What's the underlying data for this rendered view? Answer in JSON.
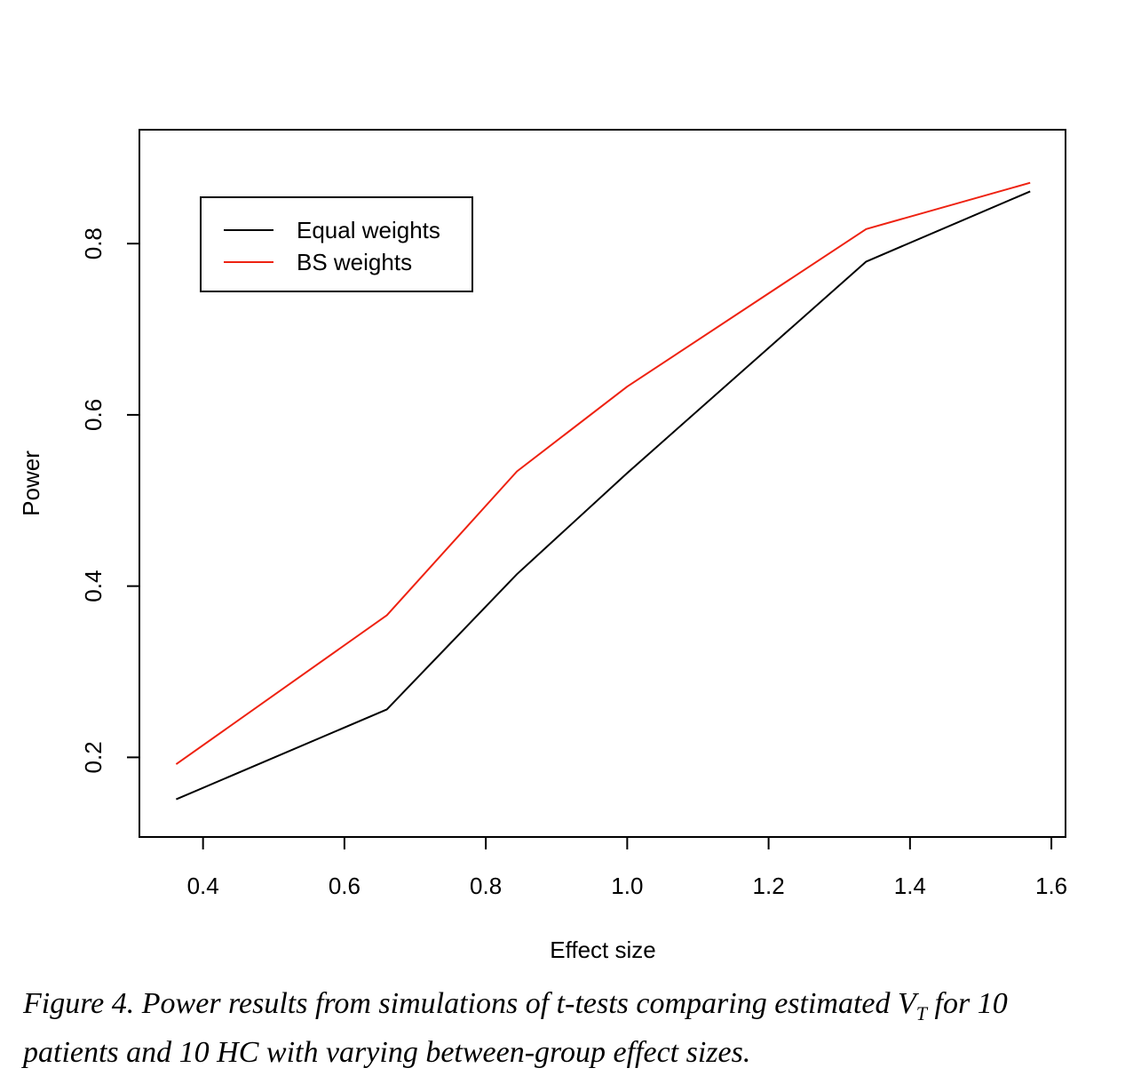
{
  "chart_data": {
    "type": "line",
    "xlabel": "Effect size",
    "ylabel": "Power",
    "xlim": [
      0.31,
      1.62
    ],
    "ylim": [
      0.107,
      0.933
    ],
    "x_ticks": [
      0.4,
      0.6,
      0.8,
      1.0,
      1.2,
      1.4,
      1.6
    ],
    "x_tick_labels": [
      "0.4",
      "0.6",
      "0.8",
      "1.0",
      "1.2",
      "1.4",
      "1.6"
    ],
    "y_ticks": [
      0.2,
      0.4,
      0.6,
      0.8
    ],
    "y_tick_labels": [
      "0.2",
      "0.4",
      "0.6",
      "0.8"
    ],
    "grid": false,
    "legend_position": "top-left",
    "x": [
      0.362,
      0.66,
      0.844,
      1.0,
      1.338,
      1.57
    ],
    "series": [
      {
        "name": "Equal weights",
        "color": "#000000",
        "values": [
          0.151,
          0.256,
          0.414,
          0.532,
          0.779,
          0.861
        ]
      },
      {
        "name": "BS weights",
        "color": "#ee2211",
        "values": [
          0.192,
          0.366,
          0.534,
          0.633,
          0.817,
          0.871
        ]
      }
    ]
  },
  "caption": {
    "line1_pre": "Figure 4. Power results from simulations of t-tests comparing estimated V",
    "subscript": "T",
    "line1_post": " for 10",
    "line2": "patients and 10 HC with varying between-group effect sizes."
  }
}
